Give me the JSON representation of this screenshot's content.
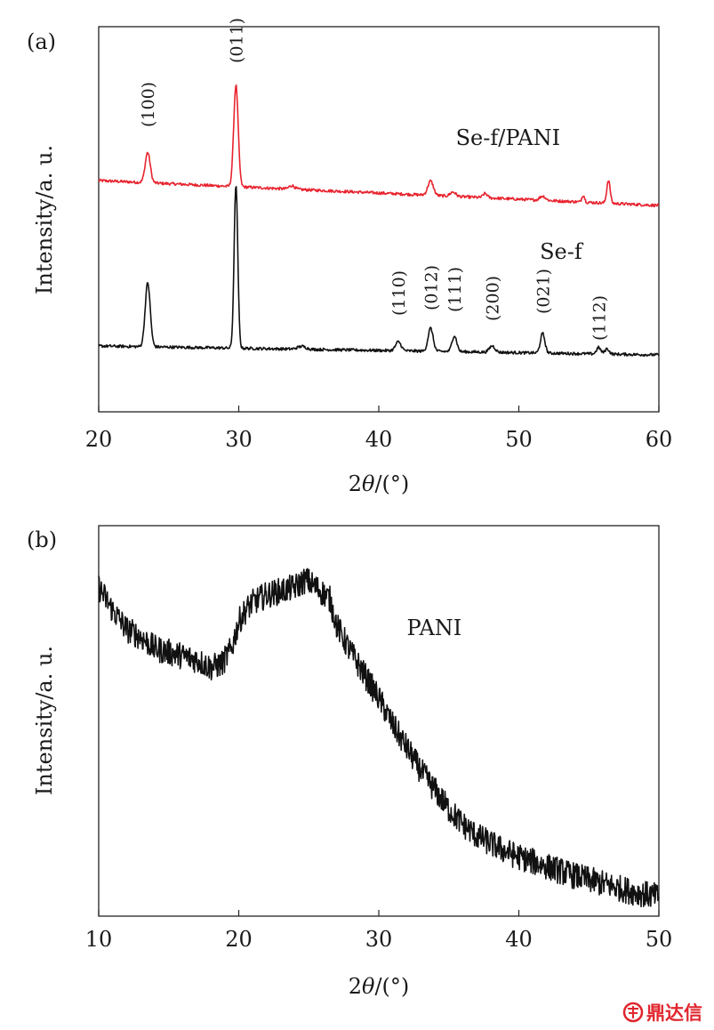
{
  "watermark": {
    "text": "鼎达信"
  },
  "chart_data": [
    {
      "panel_label": "(a)",
      "type": "line",
      "xlabel_prefix": "2",
      "xlabel_theta": "θ",
      "xlabel_suffix": "/(°)",
      "ylabel": "Intensity/a. u.",
      "xlim": [
        20,
        60
      ],
      "ylim": [
        0,
        1.0
      ],
      "xticks": [
        20,
        30,
        40,
        50,
        60
      ],
      "grid": false,
      "series": [
        {
          "name": "Se-f/PANI",
          "color": "#e8232e",
          "baseline_start": 0.605,
          "baseline_end": 0.535,
          "peaks": [
            {
              "x": 23.5,
              "height": 0.085,
              "width": 0.18
            },
            {
              "x": 29.8,
              "height": 0.285,
              "width": 0.16
            },
            {
              "x": 33.8,
              "height": 0.01,
              "width": 0.2
            },
            {
              "x": 43.7,
              "height": 0.04,
              "width": 0.2
            },
            {
              "x": 45.3,
              "height": 0.012,
              "width": 0.2
            },
            {
              "x": 47.6,
              "height": 0.012,
              "width": 0.15
            },
            {
              "x": 51.7,
              "height": 0.012,
              "width": 0.2
            },
            {
              "x": 54.6,
              "height": 0.02,
              "width": 0.1
            },
            {
              "x": 56.4,
              "height": 0.065,
              "width": 0.12
            }
          ]
        },
        {
          "name": "Se-f",
          "color": "#111111",
          "baseline_start": 0.14,
          "baseline_end": 0.115,
          "peaks": [
            {
              "x": 23.5,
              "height": 0.18,
              "width": 0.18
            },
            {
              "x": 29.8,
              "height": 0.46,
              "width": 0.13
            },
            {
              "x": 34.5,
              "height": 0.008,
              "width": 0.3
            },
            {
              "x": 41.4,
              "height": 0.025,
              "width": 0.2
            },
            {
              "x": 43.7,
              "height": 0.065,
              "width": 0.18
            },
            {
              "x": 45.4,
              "height": 0.045,
              "width": 0.17
            },
            {
              "x": 48.1,
              "height": 0.018,
              "width": 0.2
            },
            {
              "x": 51.7,
              "height": 0.055,
              "width": 0.16
            },
            {
              "x": 55.7,
              "height": 0.018,
              "width": 0.15
            },
            {
              "x": 56.3,
              "height": 0.015,
              "width": 0.15
            }
          ]
        }
      ],
      "annotations": [
        {
          "text": "(100)",
          "x": 23.5,
          "y": 0.755,
          "rotate": true
        },
        {
          "text": "(011)",
          "x": 29.8,
          "y": 0.935,
          "rotate": true
        },
        {
          "text": "(110)",
          "x": 41.4,
          "y": 0.225,
          "rotate": true
        },
        {
          "text": "(012)",
          "x": 43.7,
          "y": 0.24,
          "rotate": true
        },
        {
          "text": "(111)",
          "x": 45.4,
          "y": 0.235,
          "rotate": true
        },
        {
          "text": "(200)",
          "x": 48.1,
          "y": 0.21,
          "rotate": true
        },
        {
          "text": "(021)",
          "x": 51.7,
          "y": 0.23,
          "rotate": true
        },
        {
          "text": "(112)",
          "x": 55.7,
          "y": 0.155,
          "rotate": true
        },
        {
          "text": "Se-f/PANI",
          "x": 45.5,
          "y": 0.705,
          "rotate": false
        },
        {
          "text": "Se-f",
          "x": 51.5,
          "y": 0.385,
          "rotate": false
        }
      ]
    },
    {
      "panel_label": "(b)",
      "type": "line",
      "xlabel_prefix": "2",
      "xlabel_theta": "θ",
      "xlabel_suffix": "/(°)",
      "ylabel": "Intensity/a. u.",
      "xlim": [
        10,
        50
      ],
      "ylim": [
        0,
        1.0
      ],
      "xticks": [
        10,
        20,
        30,
        40,
        50
      ],
      "grid": false,
      "series": [
        {
          "name": "PANI",
          "color": "#111111",
          "profile_x": [
            10,
            11,
            12,
            13,
            14,
            15,
            16,
            17,
            18,
            18.8,
            19.5,
            20,
            20.5,
            21,
            22,
            23,
            24,
            24.8,
            25.5,
            26.5,
            27,
            28,
            29,
            30,
            31,
            32,
            33,
            34,
            35,
            36,
            37,
            38,
            39,
            40,
            42,
            44,
            46,
            48,
            50
          ],
          "profile_y": [
            0.86,
            0.8,
            0.75,
            0.73,
            0.7,
            0.69,
            0.68,
            0.67,
            0.65,
            0.66,
            0.7,
            0.77,
            0.8,
            0.82,
            0.84,
            0.85,
            0.86,
            0.88,
            0.86,
            0.83,
            0.76,
            0.69,
            0.63,
            0.57,
            0.5,
            0.44,
            0.38,
            0.33,
            0.28,
            0.24,
            0.21,
            0.19,
            0.17,
            0.155,
            0.13,
            0.105,
            0.085,
            0.065,
            0.05
          ],
          "noise": 0.035
        }
      ],
      "annotations": [
        {
          "text": "PANI",
          "x": 32,
          "y": 0.735,
          "rotate": false
        }
      ]
    }
  ]
}
